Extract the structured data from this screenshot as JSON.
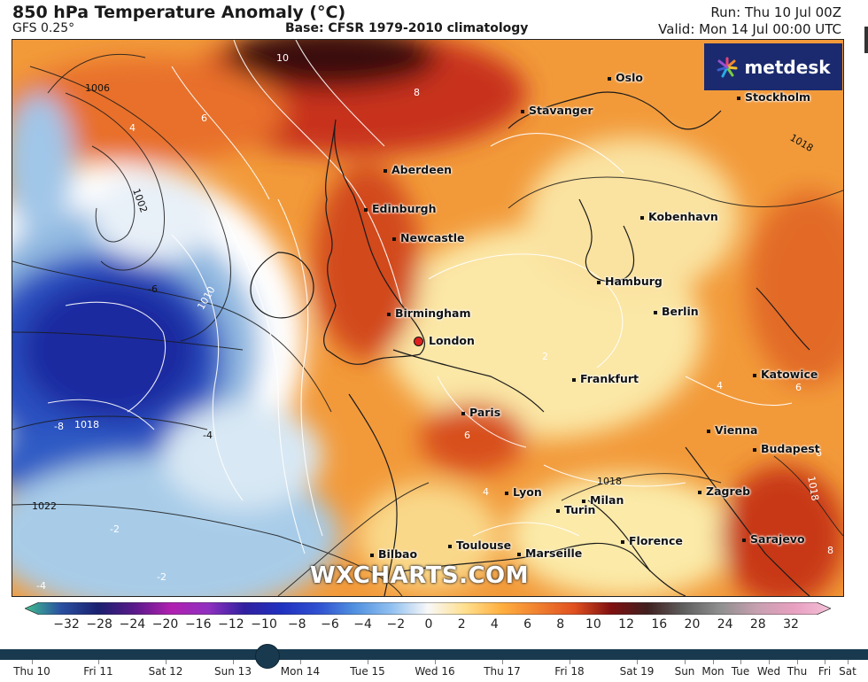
{
  "header": {
    "title": "850 hPa Temperature Anomaly (°C)",
    "model": "GFS 0.25°",
    "base": "Base: CFSR 1979-2010 climatology",
    "run": "Run: Thu 10 Jul 00Z",
    "valid": "Valid: Mon 14 Jul 00:00 UTC"
  },
  "logo": {
    "text": "metdesk",
    "color": "#1b2a6e"
  },
  "watermark": "WXCHARTS.COM",
  "cities": {
    "oslo": "Oslo",
    "stockholm": "Stockholm",
    "stavanger": "Stavanger",
    "aberdeen": "Aberdeen",
    "edinburgh": "Edinburgh",
    "newcastle": "Newcastle",
    "kobenhavn": "Kobenhavn",
    "hamburg": "Hamburg",
    "berlin": "Berlin",
    "birmingham": "Birmingham",
    "london": "London",
    "frankfurt": "Frankfurt",
    "katowice": "Katowice",
    "paris": "Paris",
    "vienna": "Vienna",
    "budapest": "Budapest",
    "lyon": "Lyon",
    "zagreb": "Zagreb",
    "milan": "Milan",
    "turin": "Turin",
    "bilbao": "Bilbao",
    "toulouse": "Toulouse",
    "marseille": "Marseille",
    "florence": "Florence",
    "sarajevo": "Sarajevo"
  },
  "contour_labels": {
    "iso1006": "1006",
    "iso1002": "1002",
    "iso1010": "1010",
    "iso1018a": "1018",
    "iso1018b": "1018",
    "iso1022": "1022",
    "iso1018c": "1018",
    "iso1018d": "1018",
    "t10": "10",
    "t8": "8",
    "t6a": "6",
    "t4": "4",
    "tm6": "-6",
    "tm8": "-8",
    "tm4": "-4",
    "tm2a": "-2",
    "tm2b": "-2",
    "tm4b": "-4",
    "t6b": "6",
    "t4b": "4",
    "t2": "2",
    "t6c": "6",
    "t4c": "4",
    "t6d": "6",
    "t8b": "8"
  },
  "colorbar": {
    "ticks": [
      "−32",
      "−28",
      "−24",
      "−20",
      "−16",
      "−12",
      "−10",
      "−8",
      "−6",
      "−4",
      "−2",
      "0",
      "2",
      "4",
      "6",
      "8",
      "10",
      "12",
      "16",
      "20",
      "24",
      "28",
      "32"
    ],
    "colors": [
      "#3fbf8f",
      "#2a4fa0",
      "#1a2070",
      "#5a1a8a",
      "#b020b0",
      "#9030c0",
      "#3020a0",
      "#2030c0",
      "#3050d0",
      "#5090e0",
      "#90c0f0",
      "#f8f8f8",
      "#ffe090",
      "#ffb040",
      "#f08030",
      "#e05020",
      "#801010",
      "#402020",
      "#606060",
      "#909090",
      "#c8a0b0",
      "#e8a0c0",
      "#f4c0d8"
    ]
  },
  "timeline": {
    "days": [
      "Thu 10",
      "Fri 11",
      "Sat 12",
      "Sun 13",
      "Mon 14",
      "Tue 15",
      "Wed 16",
      "Thu 17",
      "Fri 18",
      "Sat 19",
      "Sun",
      "Mon",
      "Tue",
      "Wed",
      "Thu",
      "Fri",
      "Sat"
    ],
    "current": "Mon 14"
  }
}
